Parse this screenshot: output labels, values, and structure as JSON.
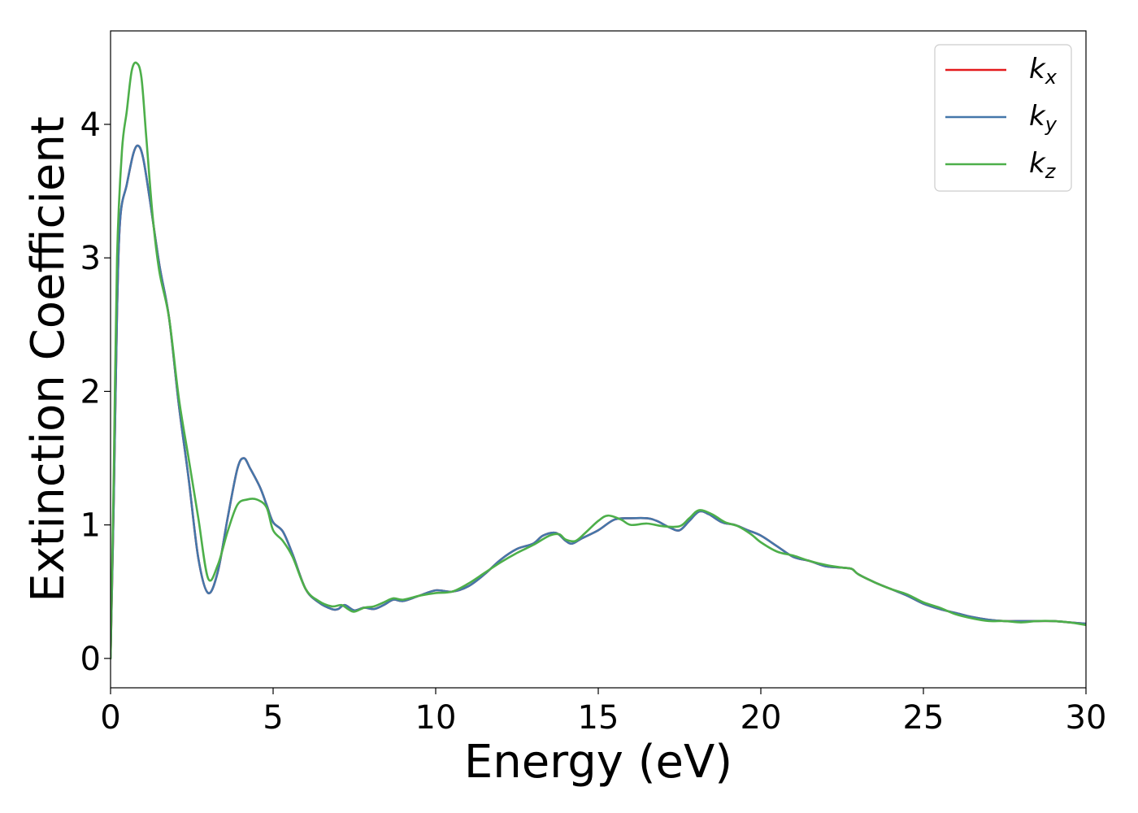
{
  "chart_data": {
    "type": "line",
    "title": "",
    "xlabel": "Energy (eV)",
    "ylabel": "Extinction Coefficient",
    "xlim": [
      0,
      30
    ],
    "ylim": [
      -0.22,
      4.7
    ],
    "xticks": [
      0,
      5,
      10,
      15,
      20,
      25,
      30
    ],
    "xtick_labels": [
      "0",
      "5",
      "10",
      "15",
      "20",
      "25",
      "30"
    ],
    "yticks": [
      0,
      1,
      2,
      3,
      4
    ],
    "ytick_labels": [
      "0",
      "1",
      "2",
      "3",
      "4"
    ],
    "grid": false,
    "legend_position": "top-right",
    "series": [
      {
        "name": "k_x",
        "legend_main": "k",
        "legend_sub": "x",
        "color": "#e41a1c",
        "points": [
          [
            0,
            0
          ],
          [
            0.1,
            1.2
          ],
          [
            0.2,
            2.6
          ],
          [
            0.3,
            3.3
          ],
          [
            0.5,
            3.55
          ],
          [
            0.7,
            3.78
          ],
          [
            0.85,
            3.84
          ],
          [
            1.0,
            3.75
          ],
          [
            1.2,
            3.45
          ],
          [
            1.5,
            2.95
          ],
          [
            1.8,
            2.55
          ],
          [
            2.1,
            1.9
          ],
          [
            2.4,
            1.35
          ],
          [
            2.7,
            0.75
          ],
          [
            3.0,
            0.49
          ],
          [
            3.3,
            0.65
          ],
          [
            3.6,
            1.05
          ],
          [
            3.9,
            1.42
          ],
          [
            4.1,
            1.5
          ],
          [
            4.3,
            1.42
          ],
          [
            4.6,
            1.28
          ],
          [
            4.8,
            1.15
          ],
          [
            5.0,
            1.02
          ],
          [
            5.3,
            0.95
          ],
          [
            5.6,
            0.78
          ],
          [
            6.0,
            0.52
          ],
          [
            6.4,
            0.42
          ],
          [
            6.8,
            0.37
          ],
          [
            7.0,
            0.37
          ],
          [
            7.2,
            0.4
          ],
          [
            7.5,
            0.36
          ],
          [
            7.8,
            0.38
          ],
          [
            8.1,
            0.37
          ],
          [
            8.4,
            0.4
          ],
          [
            8.7,
            0.44
          ],
          [
            9.0,
            0.43
          ],
          [
            9.5,
            0.47
          ],
          [
            10.0,
            0.51
          ],
          [
            10.5,
            0.5
          ],
          [
            11.0,
            0.54
          ],
          [
            11.5,
            0.63
          ],
          [
            12.0,
            0.74
          ],
          [
            12.5,
            0.82
          ],
          [
            13.0,
            0.86
          ],
          [
            13.3,
            0.92
          ],
          [
            13.7,
            0.94
          ],
          [
            14.0,
            0.88
          ],
          [
            14.2,
            0.86
          ],
          [
            14.5,
            0.9
          ],
          [
            15.0,
            0.96
          ],
          [
            15.5,
            1.04
          ],
          [
            16.0,
            1.05
          ],
          [
            16.5,
            1.05
          ],
          [
            16.8,
            1.03
          ],
          [
            17.2,
            0.98
          ],
          [
            17.5,
            0.96
          ],
          [
            17.8,
            1.03
          ],
          [
            18.1,
            1.1
          ],
          [
            18.4,
            1.08
          ],
          [
            18.8,
            1.02
          ],
          [
            19.2,
            1.0
          ],
          [
            19.6,
            0.96
          ],
          [
            20.0,
            0.92
          ],
          [
            20.5,
            0.84
          ],
          [
            21.0,
            0.76
          ],
          [
            21.5,
            0.73
          ],
          [
            22.0,
            0.69
          ],
          [
            22.5,
            0.68
          ],
          [
            22.8,
            0.67
          ],
          [
            23.0,
            0.63
          ],
          [
            23.5,
            0.57
          ],
          [
            24.0,
            0.52
          ],
          [
            24.5,
            0.47
          ],
          [
            25.0,
            0.41
          ],
          [
            25.5,
            0.37
          ],
          [
            26.0,
            0.34
          ],
          [
            26.5,
            0.31
          ],
          [
            27.0,
            0.29
          ],
          [
            27.5,
            0.28
          ],
          [
            28.0,
            0.28
          ],
          [
            28.5,
            0.28
          ],
          [
            29.0,
            0.28
          ],
          [
            29.5,
            0.27
          ],
          [
            30.0,
            0.26
          ]
        ]
      },
      {
        "name": "k_y",
        "legend_main": "k",
        "legend_sub": "y",
        "color": "#4477aa",
        "points": [
          [
            0,
            0
          ],
          [
            0.1,
            1.2
          ],
          [
            0.2,
            2.6
          ],
          [
            0.3,
            3.3
          ],
          [
            0.5,
            3.55
          ],
          [
            0.7,
            3.78
          ],
          [
            0.85,
            3.84
          ],
          [
            1.0,
            3.75
          ],
          [
            1.2,
            3.45
          ],
          [
            1.5,
            2.95
          ],
          [
            1.8,
            2.55
          ],
          [
            2.1,
            1.9
          ],
          [
            2.4,
            1.35
          ],
          [
            2.7,
            0.75
          ],
          [
            3.0,
            0.49
          ],
          [
            3.3,
            0.65
          ],
          [
            3.6,
            1.05
          ],
          [
            3.9,
            1.42
          ],
          [
            4.1,
            1.5
          ],
          [
            4.3,
            1.42
          ],
          [
            4.6,
            1.28
          ],
          [
            4.8,
            1.15
          ],
          [
            5.0,
            1.02
          ],
          [
            5.3,
            0.95
          ],
          [
            5.6,
            0.78
          ],
          [
            6.0,
            0.52
          ],
          [
            6.4,
            0.42
          ],
          [
            6.8,
            0.37
          ],
          [
            7.0,
            0.37
          ],
          [
            7.2,
            0.4
          ],
          [
            7.5,
            0.36
          ],
          [
            7.8,
            0.38
          ],
          [
            8.1,
            0.37
          ],
          [
            8.4,
            0.4
          ],
          [
            8.7,
            0.44
          ],
          [
            9.0,
            0.43
          ],
          [
            9.5,
            0.47
          ],
          [
            10.0,
            0.51
          ],
          [
            10.5,
            0.5
          ],
          [
            11.0,
            0.54
          ],
          [
            11.5,
            0.63
          ],
          [
            12.0,
            0.74
          ],
          [
            12.5,
            0.82
          ],
          [
            13.0,
            0.86
          ],
          [
            13.3,
            0.92
          ],
          [
            13.7,
            0.94
          ],
          [
            14.0,
            0.88
          ],
          [
            14.2,
            0.86
          ],
          [
            14.5,
            0.9
          ],
          [
            15.0,
            0.96
          ],
          [
            15.5,
            1.04
          ],
          [
            16.0,
            1.05
          ],
          [
            16.5,
            1.05
          ],
          [
            16.8,
            1.03
          ],
          [
            17.2,
            0.98
          ],
          [
            17.5,
            0.96
          ],
          [
            17.8,
            1.03
          ],
          [
            18.1,
            1.1
          ],
          [
            18.4,
            1.08
          ],
          [
            18.8,
            1.02
          ],
          [
            19.2,
            1.0
          ],
          [
            19.6,
            0.96
          ],
          [
            20.0,
            0.92
          ],
          [
            20.5,
            0.84
          ],
          [
            21.0,
            0.76
          ],
          [
            21.5,
            0.73
          ],
          [
            22.0,
            0.69
          ],
          [
            22.5,
            0.68
          ],
          [
            22.8,
            0.67
          ],
          [
            23.0,
            0.63
          ],
          [
            23.5,
            0.57
          ],
          [
            24.0,
            0.52
          ],
          [
            24.5,
            0.47
          ],
          [
            25.0,
            0.41
          ],
          [
            25.5,
            0.37
          ],
          [
            26.0,
            0.34
          ],
          [
            26.5,
            0.31
          ],
          [
            27.0,
            0.29
          ],
          [
            27.5,
            0.28
          ],
          [
            28.0,
            0.28
          ],
          [
            28.5,
            0.28
          ],
          [
            29.0,
            0.28
          ],
          [
            29.5,
            0.27
          ],
          [
            30.0,
            0.26
          ]
        ]
      },
      {
        "name": "k_z",
        "legend_main": "k",
        "legend_sub": "z",
        "color": "#4daf4a",
        "points": [
          [
            0,
            0
          ],
          [
            0.1,
            1.4
          ],
          [
            0.2,
            3.0
          ],
          [
            0.35,
            3.8
          ],
          [
            0.5,
            4.1
          ],
          [
            0.65,
            4.4
          ],
          [
            0.8,
            4.46
          ],
          [
            0.95,
            4.35
          ],
          [
            1.1,
            3.9
          ],
          [
            1.3,
            3.3
          ],
          [
            1.5,
            2.9
          ],
          [
            1.8,
            2.55
          ],
          [
            2.1,
            1.95
          ],
          [
            2.4,
            1.5
          ],
          [
            2.7,
            1.05
          ],
          [
            3.0,
            0.6
          ],
          [
            3.3,
            0.7
          ],
          [
            3.6,
            0.95
          ],
          [
            3.9,
            1.15
          ],
          [
            4.2,
            1.19
          ],
          [
            4.5,
            1.19
          ],
          [
            4.8,
            1.13
          ],
          [
            5.0,
            0.96
          ],
          [
            5.3,
            0.88
          ],
          [
            5.6,
            0.76
          ],
          [
            6.0,
            0.52
          ],
          [
            6.4,
            0.43
          ],
          [
            6.8,
            0.39
          ],
          [
            7.1,
            0.4
          ],
          [
            7.3,
            0.37
          ],
          [
            7.5,
            0.35
          ],
          [
            7.8,
            0.38
          ],
          [
            8.1,
            0.39
          ],
          [
            8.4,
            0.42
          ],
          [
            8.7,
            0.45
          ],
          [
            9.0,
            0.44
          ],
          [
            9.5,
            0.47
          ],
          [
            10.0,
            0.49
          ],
          [
            10.5,
            0.5
          ],
          [
            11.0,
            0.56
          ],
          [
            11.5,
            0.64
          ],
          [
            12.0,
            0.72
          ],
          [
            12.5,
            0.79
          ],
          [
            13.0,
            0.85
          ],
          [
            13.5,
            0.92
          ],
          [
            13.8,
            0.93
          ],
          [
            14.0,
            0.89
          ],
          [
            14.3,
            0.88
          ],
          [
            14.6,
            0.94
          ],
          [
            15.0,
            1.03
          ],
          [
            15.3,
            1.07
          ],
          [
            15.7,
            1.04
          ],
          [
            16.0,
            1.0
          ],
          [
            16.5,
            1.01
          ],
          [
            17.0,
            0.99
          ],
          [
            17.5,
            0.99
          ],
          [
            17.8,
            1.05
          ],
          [
            18.1,
            1.11
          ],
          [
            18.5,
            1.08
          ],
          [
            18.9,
            1.02
          ],
          [
            19.3,
            0.99
          ],
          [
            19.7,
            0.93
          ],
          [
            20.0,
            0.87
          ],
          [
            20.5,
            0.8
          ],
          [
            21.0,
            0.77
          ],
          [
            21.5,
            0.73
          ],
          [
            22.0,
            0.7
          ],
          [
            22.5,
            0.68
          ],
          [
            22.8,
            0.67
          ],
          [
            23.0,
            0.63
          ],
          [
            23.5,
            0.57
          ],
          [
            24.0,
            0.52
          ],
          [
            24.5,
            0.48
          ],
          [
            25.0,
            0.42
          ],
          [
            25.5,
            0.38
          ],
          [
            26.0,
            0.33
          ],
          [
            26.5,
            0.3
          ],
          [
            27.0,
            0.28
          ],
          [
            27.5,
            0.28
          ],
          [
            28.0,
            0.27
          ],
          [
            28.5,
            0.28
          ],
          [
            29.0,
            0.28
          ],
          [
            29.5,
            0.27
          ],
          [
            30.0,
            0.25
          ]
        ]
      }
    ]
  }
}
